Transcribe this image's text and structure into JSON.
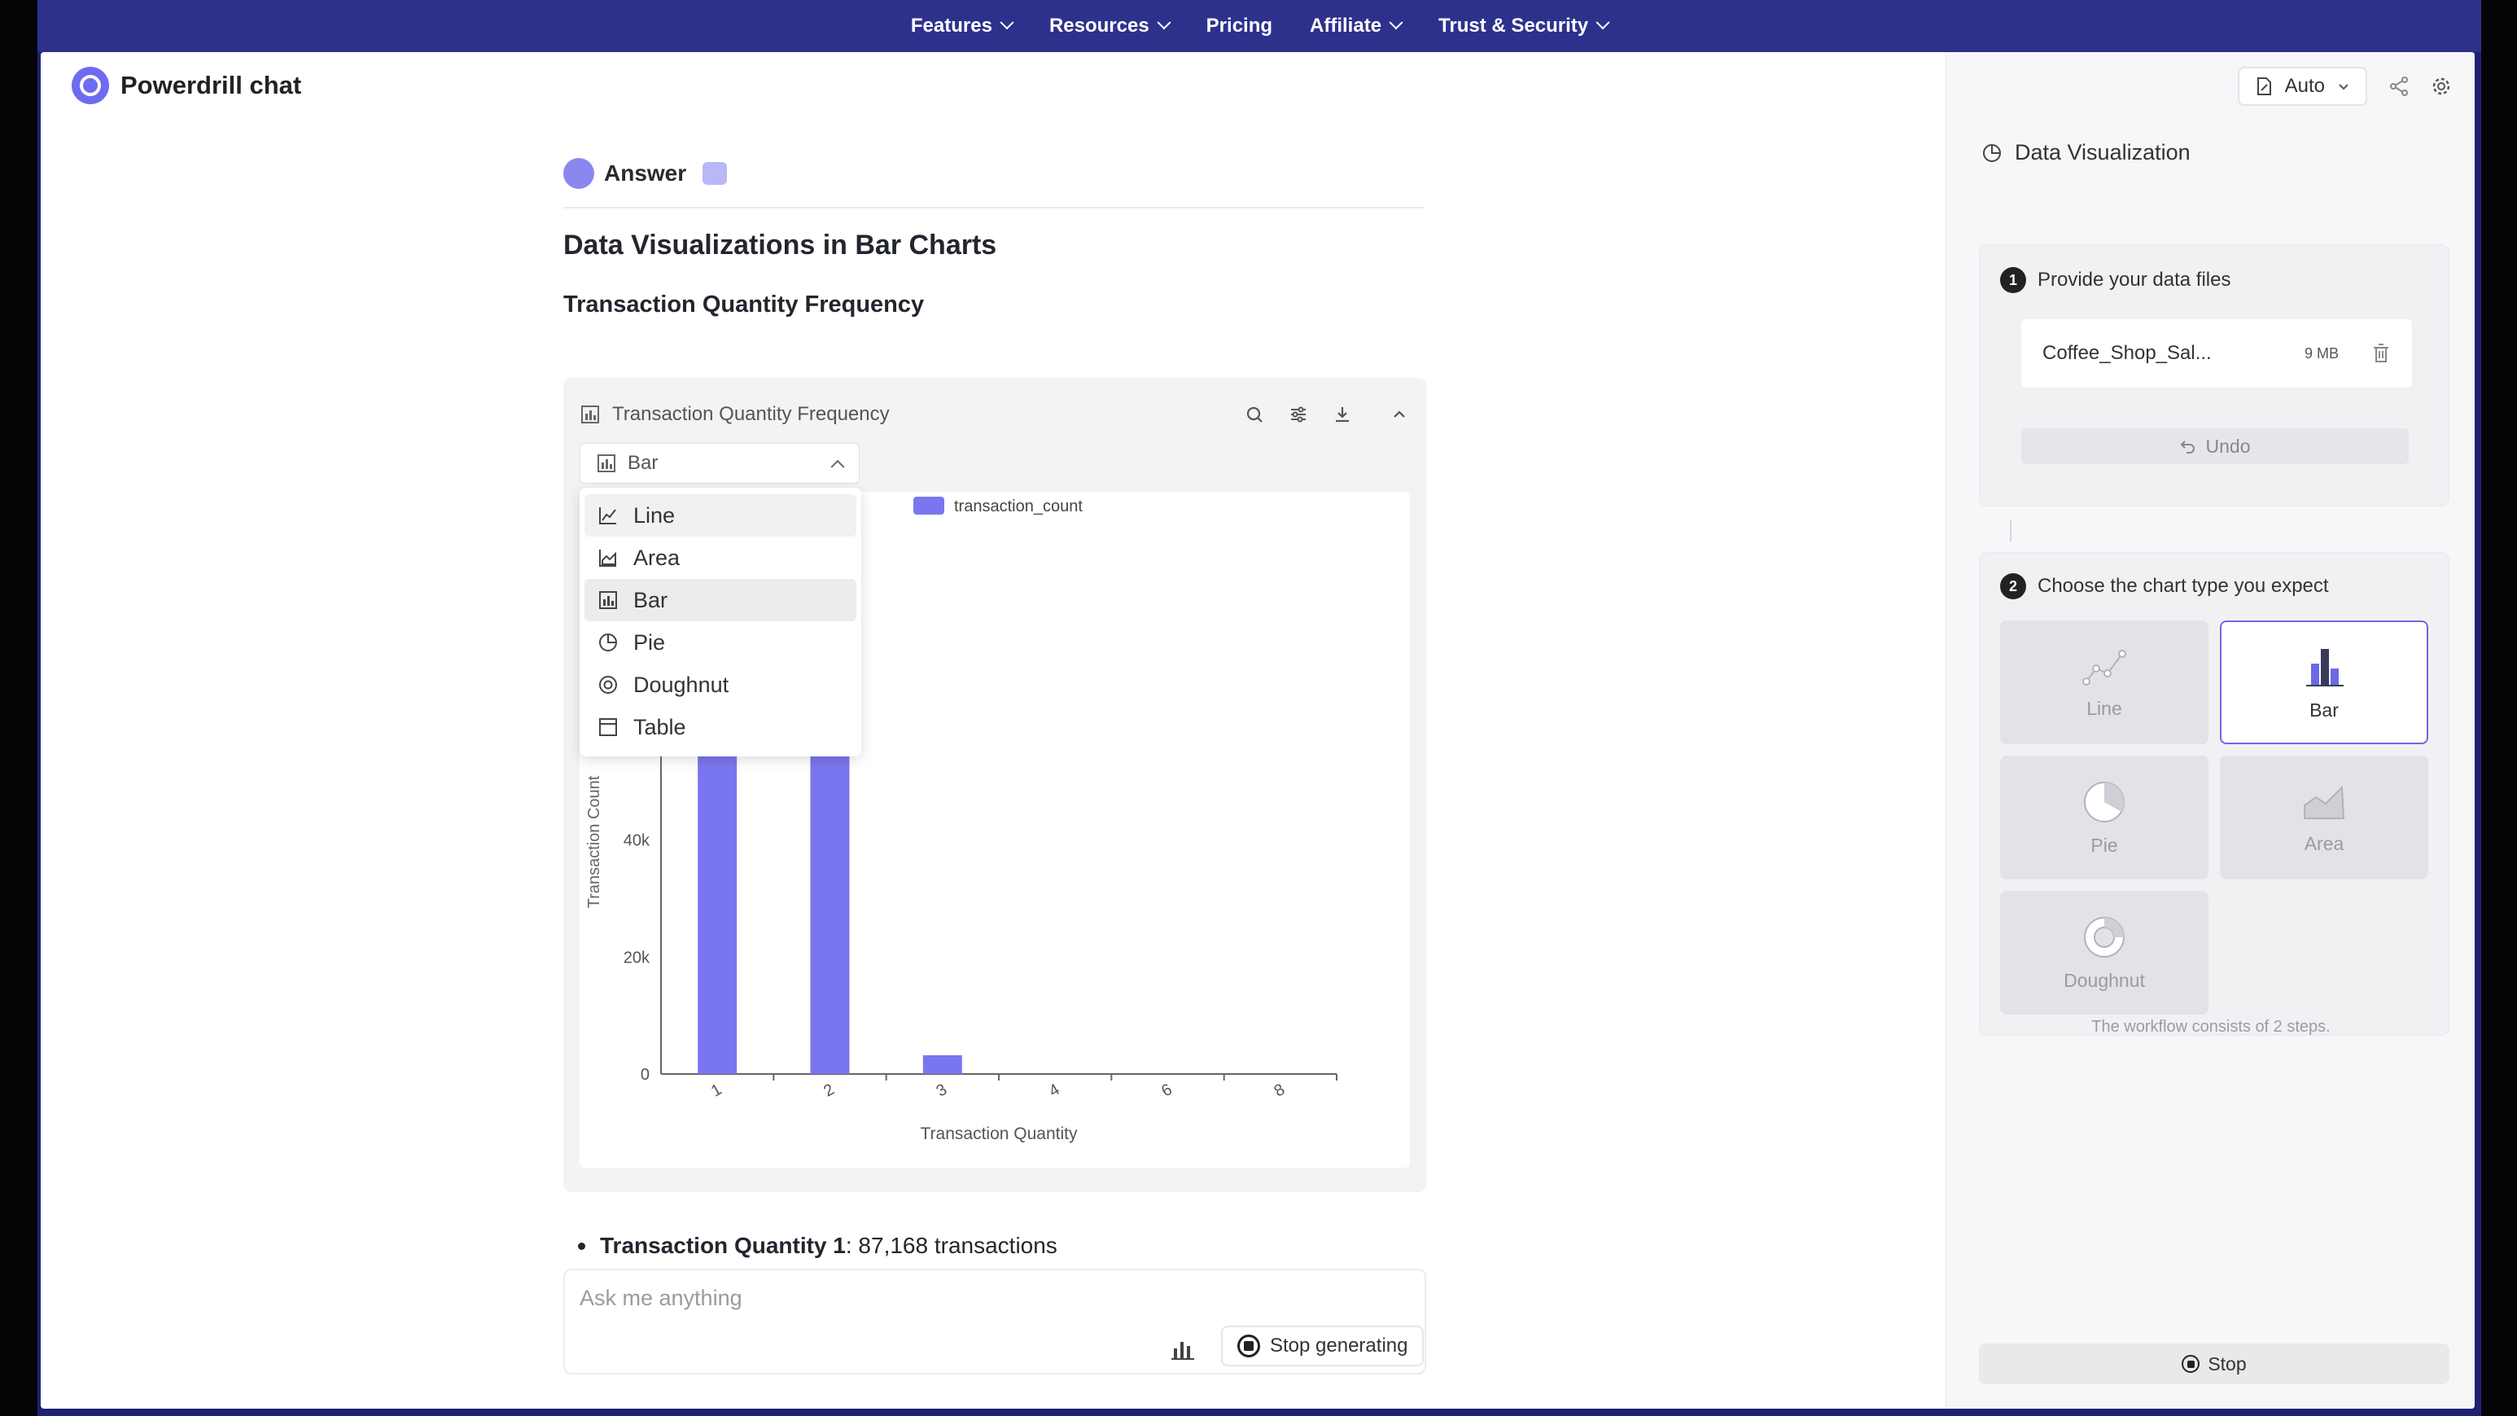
{
  "nav": {
    "items": [
      {
        "label": "Features",
        "has_menu": true
      },
      {
        "label": "Resources",
        "has_menu": true
      },
      {
        "label": "Pricing",
        "has_menu": false
      },
      {
        "label": "Affiliate",
        "has_menu": true
      },
      {
        "label": "Trust & Security",
        "has_menu": true
      }
    ]
  },
  "brand": {
    "name": "Powerdrill chat"
  },
  "answer": {
    "label": "Answer",
    "heading": "Data Visualizations in Bar Charts",
    "subheading": "Transaction Quantity Frequency",
    "bullet_term": "Transaction Quantity 1",
    "bullet_rest": ": 87,168 transactions"
  },
  "chart_card": {
    "title": "Transaction Quantity Frequency",
    "type_selected": "Bar",
    "dropdown": [
      "Line",
      "Area",
      "Bar",
      "Pie",
      "Doughnut",
      "Table"
    ]
  },
  "chart_data": {
    "type": "bar",
    "categories": [
      "1",
      "2",
      "3",
      "4",
      "6",
      "8"
    ],
    "series": [
      {
        "name": "transaction_count",
        "values": [
          87168,
          58000,
          3200,
          0,
          0,
          0
        ]
      }
    ],
    "xlabel": "Transaction Quantity",
    "ylabel": "Transaction Count",
    "ylim": [
      0,
      80000
    ],
    "yticks": [
      "0",
      "20k",
      "40k",
      "60k"
    ],
    "legend": "top",
    "color": "#7a76ef"
  },
  "composer": {
    "placeholder": "Ask me anything",
    "stop_label": "Stop generating"
  },
  "side": {
    "auto_label": "Auto",
    "title": "Data Visualization",
    "step1_num": "1",
    "step1_label": "Provide your data files",
    "file_name": "Coffee_Shop_Sal...",
    "file_size": "9 MB",
    "undo_label": "Undo",
    "step2_num": "2",
    "step2_label": "Choose the chart type you expect",
    "types": {
      "line": "Line",
      "bar": "Bar",
      "pie": "Pie",
      "area": "Area",
      "doughnut": "Doughnut"
    },
    "selected_type": "Bar",
    "note": "The workflow consists of 2 steps.",
    "stop_label": "Stop"
  },
  "colors": {
    "accent": "#6c69e6",
    "bar": "#7a76ef",
    "topbar": "#2e318c"
  }
}
